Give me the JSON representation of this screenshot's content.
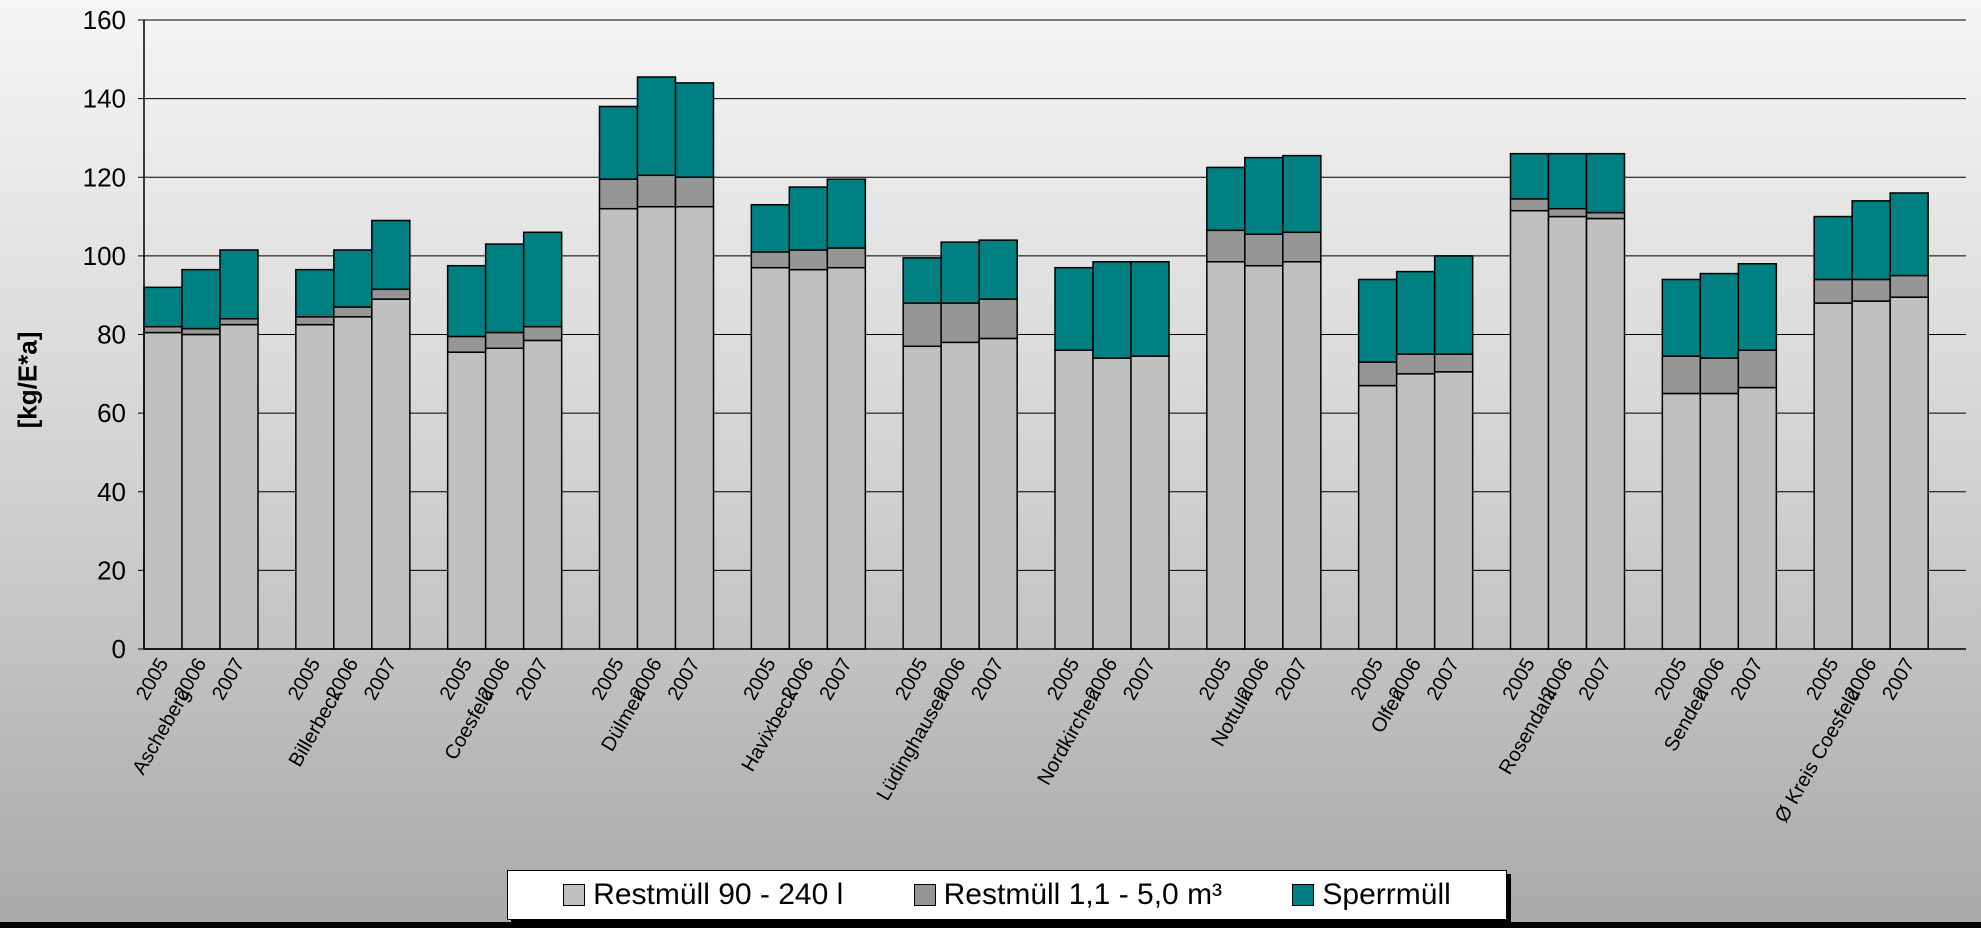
{
  "colors": {
    "restmuell_klein": "#c0c0c0",
    "restmuell_gross": "#969696",
    "sperrmuell": "#008080"
  },
  "chart_data": {
    "type": "bar",
    "stacked": true,
    "ylabel": "[kg/E*a]",
    "ylim": [
      0,
      160
    ],
    "yticks": [
      0,
      20,
      40,
      60,
      80,
      100,
      120,
      140,
      160
    ],
    "grid": true,
    "legend_position": "bottom",
    "groups": [
      "Ascheberg",
      "Billerbeck",
      "Coesfeld",
      "Dülmen",
      "Havixbeck",
      "Lüdinghausen",
      "Nordkirchen",
      "Nottuln",
      "Olfen",
      "Rosendahl",
      "Senden",
      "Ø Kreis Coesfeld"
    ],
    "years": [
      "2005",
      "2006",
      "2007"
    ],
    "series": [
      {
        "name": "Restmüll 90 - 240 l",
        "values": [
          [
            80.5,
            80.0,
            82.5
          ],
          [
            82.5,
            84.5,
            89.0
          ],
          [
            75.5,
            76.5,
            78.5
          ],
          [
            112.0,
            112.5,
            112.5
          ],
          [
            97.0,
            96.5,
            97.0
          ],
          [
            77.0,
            78.0,
            79.0
          ],
          [
            76.0,
            74.0,
            74.5
          ],
          [
            98.5,
            97.5,
            98.5
          ],
          [
            67.0,
            70.0,
            70.5
          ],
          [
            111.5,
            110.0,
            109.5
          ],
          [
            65.0,
            65.0,
            66.5
          ],
          [
            88.0,
            88.5,
            89.5
          ]
        ]
      },
      {
        "name": "Restmüll 1,1 - 5,0 m³",
        "values": [
          [
            1.5,
            1.5,
            1.5
          ],
          [
            2.0,
            2.5,
            2.5
          ],
          [
            4.0,
            4.0,
            3.5
          ],
          [
            7.5,
            8.0,
            7.5
          ],
          [
            4.0,
            5.0,
            5.0
          ],
          [
            11.0,
            10.0,
            10.0
          ],
          [
            0.0,
            0.0,
            0.0
          ],
          [
            8.0,
            8.0,
            7.5
          ],
          [
            6.0,
            5.0,
            4.5
          ],
          [
            3.0,
            2.0,
            1.5
          ],
          [
            9.5,
            9.0,
            9.5
          ],
          [
            6.0,
            5.5,
            5.5
          ]
        ]
      },
      {
        "name": "Sperrmüll",
        "values": [
          [
            10.0,
            15.0,
            17.5
          ],
          [
            12.0,
            14.5,
            17.5
          ],
          [
            18.0,
            22.5,
            24.0
          ],
          [
            18.5,
            25.0,
            24.0
          ],
          [
            12.0,
            16.0,
            17.5
          ],
          [
            11.5,
            15.5,
            15.0
          ],
          [
            21.0,
            24.5,
            24.0
          ],
          [
            16.0,
            19.5,
            19.5
          ],
          [
            21.0,
            21.0,
            25.0
          ],
          [
            11.5,
            14.0,
            15.0
          ],
          [
            19.5,
            21.5,
            22.0
          ],
          [
            16.0,
            20.0,
            21.0
          ]
        ]
      }
    ]
  }
}
